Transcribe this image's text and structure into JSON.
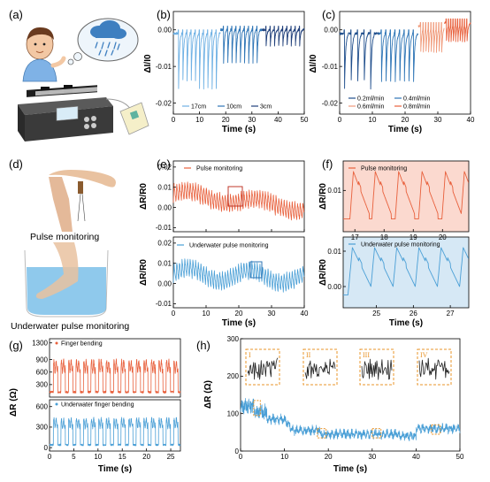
{
  "panel_labels": {
    "a": "(a)",
    "b": "(b)",
    "c": "(c)",
    "d": "(d)",
    "e": "(e)",
    "f": "(f)",
    "g": "(g)",
    "h": "(h)"
  },
  "photo_captions": {
    "pulse": "Pulse monitoring",
    "underwater": "Underwater pulse monitoring"
  },
  "colors": {
    "orange": "#e8603c",
    "blue": "#4a9fd6",
    "dark_blue": "#1f4e8c",
    "mid_blue": "#2e75b6",
    "light_orange": "#f09a7a",
    "pink_bg": "#fbd9cf",
    "blue_bg": "#d6e8f5",
    "box_orange": "#e8942a"
  },
  "chart_data": [
    {
      "id": "b",
      "type": "line",
      "xlabel": "Time (s)",
      "ylabel": "ΔI/I0",
      "xlim": [
        0,
        50
      ],
      "ylim": [
        -0.023,
        0.005
      ],
      "xticks": [
        "0",
        "10",
        "20",
        "30",
        "40",
        "50"
      ],
      "yticks": [
        "0.00",
        "-0.01",
        "-0.02"
      ],
      "series": [
        {
          "name": "17cm",
          "color": "#6fb1e4",
          "x_range": [
            0,
            18
          ],
          "peak_times": [
            2,
            3.6,
            5.2,
            6.8,
            8.4,
            10,
            11.6,
            13.2,
            14.8,
            16.4
          ],
          "dip": -0.015,
          "base": -0.001
        },
        {
          "name": "10cm",
          "color": "#2e75b6",
          "x_range": [
            18,
            34
          ],
          "peak_times": [
            19.2,
            20.8,
            22.4,
            24,
            25.6,
            27.2,
            28.8,
            30.4,
            32
          ],
          "dip": -0.009,
          "base": 0.0
        },
        {
          "name": "3cm",
          "color": "#1f3f7a",
          "x_range": [
            34,
            50
          ],
          "peak_times": [
            35.4,
            37,
            38.6,
            40.2,
            41.8,
            43.4,
            45,
            46.6,
            48.2
          ],
          "dip": -0.005,
          "base": 0.0
        }
      ]
    },
    {
      "id": "c",
      "type": "line",
      "xlabel": "Time (s)",
      "ylabel": "ΔI/I0",
      "xlim": [
        0,
        40
      ],
      "ylim": [
        -0.023,
        0.005
      ],
      "xticks": [
        "0",
        "10",
        "20",
        "30",
        "40"
      ],
      "yticks": [
        "0.00",
        "-0.01",
        "-0.02"
      ],
      "series": [
        {
          "name": "0.2ml/min",
          "color": "#1f4e8c",
          "x_range": [
            0,
            12
          ],
          "peak_times": [
            1.5,
            3.5,
            5.5,
            7.5,
            9.5
          ],
          "dip": -0.015,
          "base": -0.001
        },
        {
          "name": "0.4ml/min",
          "color": "#2e75b6",
          "x_range": [
            12,
            24
          ],
          "peak_times": [
            12.8,
            14.2,
            15.6,
            17,
            18.4,
            19.8,
            21.2,
            22.6
          ],
          "dip": -0.013,
          "base": -0.001
        },
        {
          "name": "0.6ml/min",
          "color": "#f09a7a",
          "x_range": [
            24,
            32
          ],
          "peak_times": [
            24.8,
            25.6,
            26.4,
            27.2,
            28,
            28.8,
            29.6,
            30.4,
            31.2
          ],
          "dip": -0.007,
          "base": 0.001
        },
        {
          "name": "0.8ml/min",
          "color": "#e8603c",
          "x_range": [
            32,
            40
          ],
          "peak_times": [
            32.6,
            33.3,
            34,
            34.7,
            35.4,
            36.1,
            36.8,
            37.5,
            38.2,
            38.9
          ],
          "dip": -0.006,
          "base": 0.002
        }
      ]
    },
    {
      "id": "e_top",
      "type": "line",
      "legend": "Pulse monitoring",
      "color": "#e8603c",
      "ylabel": "ΔR/R0",
      "xlim": [
        0,
        40
      ],
      "ylim": [
        -0.012,
        0.023
      ],
      "yticks": [
        "0.02",
        "0.01",
        "0.00",
        "-0.01"
      ],
      "period": 0.82,
      "amp": 0.009,
      "drift": "descending"
    },
    {
      "id": "e_bottom",
      "type": "line",
      "legend": "Underwater pulse monitoring",
      "color": "#4a9fd6",
      "xlabel": "Time (s)",
      "ylabel": "ΔR/R0",
      "xlim": [
        0,
        40
      ],
      "ylim": [
        -0.012,
        0.023
      ],
      "xticks": [
        "0",
        "10",
        "20",
        "30",
        "40"
      ],
      "yticks": [
        "0.02",
        "0.01",
        "0.00",
        "-0.01"
      ],
      "period": 0.82,
      "amp": 0.009,
      "drift": "wavy"
    },
    {
      "id": "f_top",
      "type": "line",
      "legend": "Pulse monitoring",
      "color": "#e8603c",
      "ylabel": "ΔR/R0",
      "xlim": [
        16.6,
        20.9
      ],
      "ylim": [
        -0.004,
        0.02
      ],
      "xticks": [
        "17",
        "18",
        "19",
        "20"
      ],
      "yticks": [
        "0.01"
      ],
      "peak_times": [
        16.95,
        17.7,
        18.5,
        19.3,
        20.1,
        20.75
      ]
    },
    {
      "id": "f_bottom",
      "type": "line",
      "legend": "Underwater pulse monitoring",
      "color": "#4a9fd6",
      "xlabel": "Time (s)",
      "ylabel": "ΔR/R0",
      "xlim": [
        24.1,
        27.5
      ],
      "ylim": [
        -0.006,
        0.014
      ],
      "xticks": [
        "25",
        "26",
        "27"
      ],
      "yticks": [
        "0.01",
        "0.00"
      ],
      "peak_times": [
        24.35,
        24.95,
        25.55,
        26.15,
        26.75,
        27.35
      ]
    },
    {
      "id": "g",
      "type": "line",
      "xlabel": "Time (s)",
      "ylabel": "ΔR (Ω)",
      "xlim": [
        0,
        27
      ],
      "xticks": [
        "0",
        "5",
        "10",
        "15",
        "20",
        "25"
      ],
      "top": {
        "legend": "Finger bending",
        "color": "#e8603c",
        "yticks": [
          "1300",
          "900",
          "600",
          "300"
        ],
        "ylim": [
          0,
          1400
        ],
        "cycle_times": [
          0.8,
          2.35,
          3.9,
          5.45,
          7.0,
          8.55,
          10.1,
          11.65,
          13.2,
          14.75,
          16.3,
          17.85,
          19.4,
          20.95,
          22.5,
          24.05,
          25.6
        ],
        "high": 870,
        "low": 120
      },
      "bottom": {
        "legend": "Underwater finger bending",
        "color": "#4a9fd6",
        "yticks": [
          "600",
          "300",
          "0"
        ],
        "ylim": [
          -50,
          700
        ],
        "cycle_times": [
          0.8,
          2.35,
          3.9,
          5.45,
          7.0,
          8.55,
          10.1,
          11.65,
          13.2,
          14.75,
          16.3,
          17.85,
          19.4,
          20.95,
          22.5,
          24.05,
          25.6
        ],
        "high": 420,
        "low": 40
      }
    },
    {
      "id": "h",
      "type": "line",
      "color": "#4a9fd6",
      "xlabel": "Time (s)",
      "ylabel": "ΔR (Ω)",
      "xlim": [
        0,
        50
      ],
      "ylim": [
        0,
        300
      ],
      "xticks": [
        "0",
        "10",
        "20",
        "30",
        "40",
        "50"
      ],
      "yticks": [
        "300",
        "200",
        "100",
        "0"
      ],
      "segments": [
        {
          "x": [
            0,
            3
          ],
          "level": 120
        },
        {
          "x": [
            3,
            6
          ],
          "level": 105
        },
        {
          "x": [
            6,
            10
          ],
          "level": 85
        },
        {
          "x": [
            10,
            18
          ],
          "level": 55
        },
        {
          "x": [
            18,
            24
          ],
          "level": 45
        },
        {
          "x": [
            24,
            36
          ],
          "level": 45
        },
        {
          "x": [
            36,
            40
          ],
          "level": 40
        },
        {
          "x": [
            40,
            50
          ],
          "level": 60
        }
      ],
      "insets": [
        {
          "label": "I",
          "x": 5
        },
        {
          "label": "II",
          "x": 18
        },
        {
          "label": "III",
          "x": 31
        },
        {
          "label": "IV",
          "x": 44
        }
      ]
    }
  ]
}
